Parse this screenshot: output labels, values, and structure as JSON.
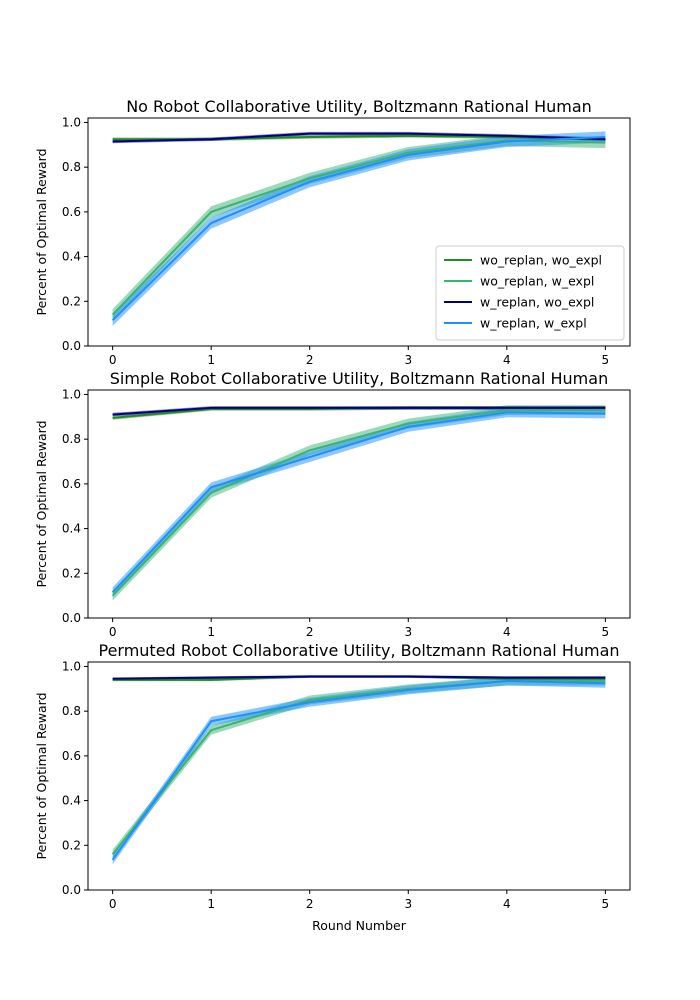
{
  "colors": {
    "wo_replan_wo_expl": "#228b22",
    "wo_replan_w_expl": "#3cb371",
    "w_replan_wo_expl": "#000080",
    "w_replan_w_expl": "#1e90ff"
  },
  "chart_data": [
    {
      "type": "line",
      "title": "No Robot Collaborative Utility, Boltzmann Rational Human",
      "ylabel": "Percent of Optimal Reward",
      "xlabel": "",
      "x": [
        0,
        1,
        2,
        3,
        4,
        5
      ],
      "xlim": [
        -0.25,
        5.25
      ],
      "ylim": [
        0,
        1.02
      ],
      "xticks": [
        "0",
        "1",
        "2",
        "3",
        "4",
        "5"
      ],
      "yticks": [
        "0.0",
        "0.2",
        "0.4",
        "0.6",
        "0.8",
        "1.0"
      ],
      "grid": false,
      "legend": "lower-right",
      "series": [
        {
          "name": "wo_replan, wo_expl",
          "color_key": "wo_replan_wo_expl",
          "values": [
            0.925,
            0.925,
            0.935,
            0.94,
            0.935,
            0.925
          ],
          "band": 0.008,
          "band_alpha": 0.45
        },
        {
          "name": "wo_replan, w_expl",
          "color_key": "wo_replan_w_expl",
          "values": [
            0.14,
            0.6,
            0.75,
            0.865,
            0.92,
            0.91
          ],
          "band": 0.025,
          "band_alpha": 0.5
        },
        {
          "name": "w_replan, wo_expl",
          "color_key": "w_replan_wo_expl",
          "values": [
            0.915,
            0.925,
            0.95,
            0.95,
            0.94,
            0.925
          ],
          "band": 0.008,
          "band_alpha": 0.45
        },
        {
          "name": "w_replan, w_expl",
          "color_key": "w_replan_w_expl",
          "values": [
            0.115,
            0.55,
            0.735,
            0.855,
            0.915,
            0.935
          ],
          "band": 0.025,
          "band_alpha": 0.5
        }
      ]
    },
    {
      "type": "line",
      "title": "Simple Robot Collaborative Utility, Boltzmann Rational Human",
      "ylabel": "Percent of Optimal Reward",
      "xlabel": "",
      "x": [
        0,
        1,
        2,
        3,
        4,
        5
      ],
      "xlim": [
        -0.25,
        5.25
      ],
      "ylim": [
        0,
        1.02
      ],
      "xticks": [
        "0",
        "1",
        "2",
        "3",
        "4",
        "5"
      ],
      "yticks": [
        "0.0",
        "0.2",
        "0.4",
        "0.6",
        "0.8",
        "1.0"
      ],
      "grid": false,
      "legend": "none",
      "series": [
        {
          "name": "wo_replan, wo_expl",
          "color_key": "wo_replan_wo_expl",
          "values": [
            0.895,
            0.935,
            0.935,
            0.94,
            0.94,
            0.94
          ],
          "band": 0.008,
          "band_alpha": 0.45
        },
        {
          "name": "wo_replan, w_expl",
          "color_key": "wo_replan_w_expl",
          "values": [
            0.1,
            0.56,
            0.75,
            0.87,
            0.93,
            0.93
          ],
          "band": 0.022,
          "band_alpha": 0.5
        },
        {
          "name": "w_replan, wo_expl",
          "color_key": "w_replan_wo_expl",
          "values": [
            0.91,
            0.94,
            0.94,
            0.94,
            0.94,
            0.94
          ],
          "band": 0.008,
          "band_alpha": 0.45
        },
        {
          "name": "w_replan, w_expl",
          "color_key": "w_replan_w_expl",
          "values": [
            0.115,
            0.585,
            0.72,
            0.855,
            0.92,
            0.915
          ],
          "band": 0.022,
          "band_alpha": 0.5
        }
      ]
    },
    {
      "type": "line",
      "title": "Permuted Robot Collaborative Utility, Boltzmann Rational Human",
      "ylabel": "Percent of Optimal Reward",
      "xlabel": "Round Number",
      "x": [
        0,
        1,
        2,
        3,
        4,
        5
      ],
      "xlim": [
        -0.25,
        5.25
      ],
      "ylim": [
        0,
        1.02
      ],
      "xticks": [
        "0",
        "1",
        "2",
        "3",
        "4",
        "5"
      ],
      "yticks": [
        "0.0",
        "0.2",
        "0.4",
        "0.6",
        "0.8",
        "1.0"
      ],
      "grid": false,
      "legend": "none",
      "series": [
        {
          "name": "wo_replan, wo_expl",
          "color_key": "wo_replan_wo_expl",
          "values": [
            0.94,
            0.94,
            0.955,
            0.955,
            0.945,
            0.945
          ],
          "band": 0.006,
          "band_alpha": 0.45
        },
        {
          "name": "wo_replan, w_expl",
          "color_key": "wo_replan_w_expl",
          "values": [
            0.16,
            0.715,
            0.85,
            0.9,
            0.935,
            0.935
          ],
          "band": 0.02,
          "band_alpha": 0.5
        },
        {
          "name": "w_replan, wo_expl",
          "color_key": "w_replan_wo_expl",
          "values": [
            0.945,
            0.95,
            0.955,
            0.955,
            0.95,
            0.95
          ],
          "band": 0.006,
          "band_alpha": 0.45
        },
        {
          "name": "w_replan, w_expl",
          "color_key": "w_replan_w_expl",
          "values": [
            0.135,
            0.755,
            0.84,
            0.895,
            0.935,
            0.925
          ],
          "band": 0.02,
          "band_alpha": 0.5
        }
      ]
    }
  ]
}
